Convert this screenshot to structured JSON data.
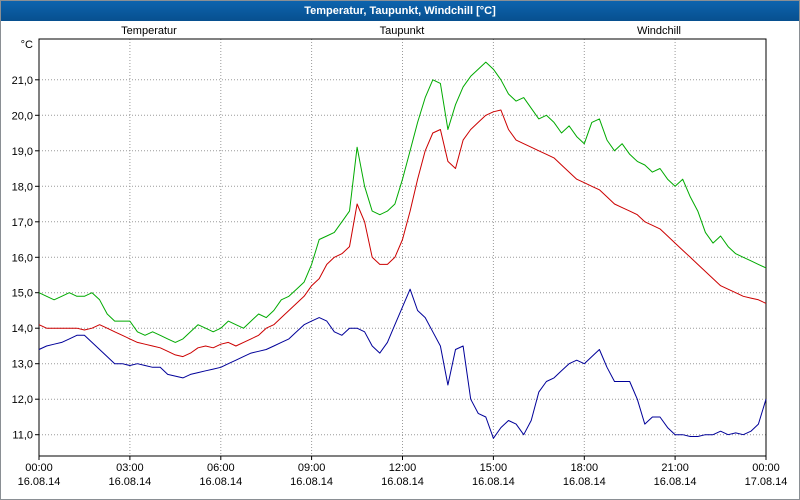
{
  "window": {
    "title": "Temperatur, Taupunkt, Windchill [°C]"
  },
  "chart_data": {
    "type": "line",
    "title": "Temperatur, Taupunkt, Windchill [°C]",
    "ylabel": "°C",
    "x_unit": "hours",
    "x_start": 0,
    "x_step": 0.25,
    "xlim": [
      0,
      24
    ],
    "ylim": [
      10.4,
      22.15
    ],
    "grid": "dotted",
    "legend_position": "top",
    "y_ticks": [
      11,
      12,
      13,
      14,
      15,
      16,
      17,
      18,
      19,
      20,
      21
    ],
    "y_tick_labels": [
      "11,0",
      "12,0",
      "13,0",
      "14,0",
      "15,0",
      "16,0",
      "17,0",
      "18,0",
      "19,0",
      "20,0",
      "21,0"
    ],
    "x_ticks_hours": [
      0,
      3,
      6,
      9,
      12,
      15,
      18,
      21,
      24
    ],
    "x_tick_labels": [
      "00:00",
      "03:00",
      "06:00",
      "09:00",
      "12:00",
      "15:00",
      "18:00",
      "21:00",
      "00:00"
    ],
    "x_date_labels": [
      "16.08.14",
      "16.08.14",
      "16.08.14",
      "16.08.14",
      "16.08.14",
      "16.08.14",
      "16.08.14",
      "16.08.14",
      "17.08.14"
    ],
    "series": [
      {
        "name": "Temperatur",
        "color": "#cc0000",
        "values": [
          14.1,
          14.0,
          14.0,
          14.0,
          14.0,
          14.0,
          13.95,
          14.0,
          14.1,
          14.0,
          13.9,
          13.8,
          13.7,
          13.6,
          13.55,
          13.5,
          13.45,
          13.35,
          13.25,
          13.2,
          13.3,
          13.45,
          13.5,
          13.45,
          13.55,
          13.6,
          13.5,
          13.6,
          13.7,
          13.8,
          14.0,
          14.1,
          14.3,
          14.5,
          14.7,
          14.9,
          15.2,
          15.4,
          15.8,
          16.0,
          16.1,
          16.3,
          17.5,
          17.0,
          16.0,
          15.8,
          15.8,
          16.0,
          16.5,
          17.3,
          18.2,
          19.0,
          19.5,
          19.6,
          18.7,
          18.5,
          19.3,
          19.6,
          19.8,
          20.0,
          20.1,
          20.15,
          19.6,
          19.3,
          19.2,
          19.1,
          19.0,
          18.9,
          18.8,
          18.6,
          18.4,
          18.2,
          18.1,
          18.0,
          17.9,
          17.7,
          17.5,
          17.4,
          17.3,
          17.2,
          17.0,
          16.9,
          16.8,
          16.6,
          16.4,
          16.2,
          16.0,
          15.8,
          15.6,
          15.4,
          15.2,
          15.1,
          15.0,
          14.9,
          14.85,
          14.8,
          14.7
        ]
      },
      {
        "name": "Taupunkt",
        "color": "#000099",
        "values": [
          13.4,
          13.5,
          13.55,
          13.6,
          13.7,
          13.8,
          13.8,
          13.6,
          13.4,
          13.2,
          13.0,
          13.0,
          12.95,
          13.0,
          12.95,
          12.9,
          12.9,
          12.7,
          12.65,
          12.6,
          12.7,
          12.75,
          12.8,
          12.85,
          12.9,
          13.0,
          13.1,
          13.2,
          13.3,
          13.35,
          13.4,
          13.5,
          13.6,
          13.7,
          13.9,
          14.1,
          14.2,
          14.3,
          14.2,
          13.9,
          13.8,
          14.0,
          14.0,
          13.9,
          13.5,
          13.3,
          13.6,
          14.1,
          14.6,
          15.1,
          14.5,
          14.3,
          13.9,
          13.5,
          12.4,
          13.4,
          13.5,
          12.0,
          11.6,
          11.5,
          10.9,
          11.2,
          11.4,
          11.3,
          11.0,
          11.4,
          12.2,
          12.5,
          12.6,
          12.8,
          13.0,
          13.1,
          13.0,
          13.2,
          13.4,
          12.9,
          12.5,
          12.5,
          12.5,
          12.0,
          11.3,
          11.5,
          11.5,
          11.2,
          11.0,
          11.0,
          10.95,
          10.95,
          11.0,
          11.0,
          11.1,
          11.0,
          11.05,
          11.0,
          11.1,
          11.3,
          12.0
        ]
      },
      {
        "name": "Windchill",
        "color": "#00aa00",
        "values": [
          15.0,
          14.9,
          14.8,
          14.9,
          15.0,
          14.9,
          14.9,
          15.0,
          14.8,
          14.4,
          14.2,
          14.2,
          14.2,
          13.9,
          13.8,
          13.9,
          13.8,
          13.7,
          13.6,
          13.7,
          13.9,
          14.1,
          14.0,
          13.9,
          14.0,
          14.2,
          14.1,
          14.0,
          14.2,
          14.4,
          14.3,
          14.5,
          14.8,
          14.9,
          15.1,
          15.3,
          15.8,
          16.5,
          16.6,
          16.7,
          17.0,
          17.3,
          19.1,
          18.0,
          17.3,
          17.2,
          17.3,
          17.5,
          18.2,
          19.0,
          19.8,
          20.5,
          21.0,
          20.9,
          19.6,
          20.3,
          20.8,
          21.1,
          21.3,
          21.5,
          21.3,
          21.0,
          20.6,
          20.4,
          20.5,
          20.2,
          19.9,
          20.0,
          19.8,
          19.5,
          19.7,
          19.4,
          19.2,
          19.8,
          19.9,
          19.3,
          19.0,
          19.2,
          18.9,
          18.7,
          18.6,
          18.4,
          18.5,
          18.2,
          18.0,
          18.2,
          17.7,
          17.3,
          16.7,
          16.4,
          16.6,
          16.3,
          16.1,
          16.0,
          15.9,
          15.8,
          15.7
        ]
      }
    ]
  }
}
